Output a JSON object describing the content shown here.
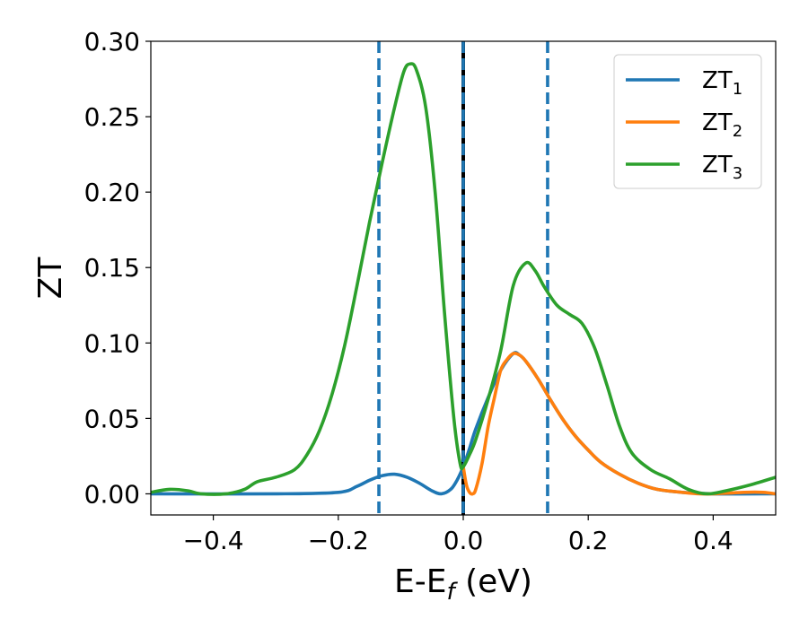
{
  "chart_data": {
    "type": "line",
    "title": "",
    "xlabel_main": "E-E",
    "xlabel_sub": "f",
    "xlabel_unit": " (eV)",
    "ylabel": "ZT",
    "xlim": [
      -0.5,
      0.5
    ],
    "ylim": [
      -0.014,
      0.3
    ],
    "xticks": [
      -0.4,
      -0.2,
      0.0,
      0.2,
      0.4
    ],
    "xtick_labels": [
      "−0.4",
      "−0.2",
      "0.0",
      "0.2",
      "0.4"
    ],
    "yticks": [
      0.0,
      0.05,
      0.1,
      0.15,
      0.2,
      0.25,
      0.3
    ],
    "ytick_labels": [
      "0.00",
      "0.05",
      "0.10",
      "0.15",
      "0.20",
      "0.25",
      "0.30"
    ],
    "grid": false,
    "legend_position": "top-right",
    "vlines": [
      {
        "x": -0.135,
        "style": "dashed",
        "color": "#1f77b4"
      },
      {
        "x": 0.135,
        "style": "dashed",
        "color": "#1f77b4"
      },
      {
        "x": 0.0,
        "style": "solid",
        "color": "#000000"
      },
      {
        "x": 0.0,
        "style": "dashed",
        "color": "#1f77b4"
      }
    ],
    "series": [
      {
        "name_main": "ZT",
        "name_sub": "1",
        "color": "#1f77b4",
        "points": [
          [
            -0.5,
            0.0
          ],
          [
            -0.3,
            0.0
          ],
          [
            -0.2,
            0.001
          ],
          [
            -0.17,
            0.005
          ],
          [
            -0.15,
            0.009
          ],
          [
            -0.13,
            0.012
          ],
          [
            -0.11,
            0.013
          ],
          [
            -0.09,
            0.011
          ],
          [
            -0.07,
            0.007
          ],
          [
            -0.05,
            0.002
          ],
          [
            -0.035,
            0.0
          ],
          [
            -0.02,
            0.003
          ],
          [
            -0.01,
            0.009
          ],
          [
            0.0,
            0.018
          ],
          [
            0.01,
            0.03
          ],
          [
            0.02,
            0.043
          ],
          [
            0.04,
            0.064
          ],
          [
            0.06,
            0.082
          ],
          [
            0.08,
            0.093
          ],
          [
            0.09,
            0.092
          ],
          [
            0.1,
            0.088
          ],
          [
            0.12,
            0.076
          ],
          [
            0.14,
            0.062
          ],
          [
            0.16,
            0.049
          ],
          [
            0.18,
            0.038
          ],
          [
            0.2,
            0.029
          ],
          [
            0.22,
            0.021
          ],
          [
            0.25,
            0.013
          ],
          [
            0.28,
            0.007
          ],
          [
            0.31,
            0.003
          ],
          [
            0.35,
            0.001
          ],
          [
            0.4,
            0.0
          ],
          [
            0.5,
            0.0
          ]
        ]
      },
      {
        "name_main": "ZT",
        "name_sub": "2",
        "color": "#ff7f0e",
        "points": [
          [
            0.0,
            0.018
          ],
          [
            0.005,
            0.006
          ],
          [
            0.01,
            0.001
          ],
          [
            0.015,
            0.0
          ],
          [
            0.02,
            0.003
          ],
          [
            0.03,
            0.02
          ],
          [
            0.04,
            0.045
          ],
          [
            0.05,
            0.064
          ],
          [
            0.06,
            0.082
          ],
          [
            0.07,
            0.089
          ],
          [
            0.08,
            0.093
          ],
          [
            0.09,
            0.092
          ],
          [
            0.1,
            0.088
          ],
          [
            0.12,
            0.076
          ],
          [
            0.14,
            0.062
          ],
          [
            0.16,
            0.049
          ],
          [
            0.18,
            0.038
          ],
          [
            0.2,
            0.029
          ],
          [
            0.22,
            0.021
          ],
          [
            0.25,
            0.013
          ],
          [
            0.28,
            0.007
          ],
          [
            0.31,
            0.003
          ],
          [
            0.35,
            0.001
          ],
          [
            0.38,
            0.0
          ],
          [
            0.4,
            0.0
          ],
          [
            0.45,
            0.001
          ],
          [
            0.48,
            0.001
          ],
          [
            0.5,
            0.0
          ]
        ]
      },
      {
        "name_main": "ZT",
        "name_sub": "3",
        "color": "#2ca02c",
        "points": [
          [
            -0.5,
            0.001
          ],
          [
            -0.47,
            0.003
          ],
          [
            -0.44,
            0.002
          ],
          [
            -0.42,
            0.0
          ],
          [
            -0.38,
            0.0
          ],
          [
            -0.35,
            0.003
          ],
          [
            -0.33,
            0.008
          ],
          [
            -0.3,
            0.011
          ],
          [
            -0.27,
            0.016
          ],
          [
            -0.25,
            0.026
          ],
          [
            -0.23,
            0.042
          ],
          [
            -0.21,
            0.066
          ],
          [
            -0.19,
            0.098
          ],
          [
            -0.17,
            0.138
          ],
          [
            -0.15,
            0.18
          ],
          [
            -0.13,
            0.219
          ],
          [
            -0.11,
            0.256
          ],
          [
            -0.095,
            0.28
          ],
          [
            -0.085,
            0.285
          ],
          [
            -0.075,
            0.281
          ],
          [
            -0.06,
            0.256
          ],
          [
            -0.045,
            0.2
          ],
          [
            -0.03,
            0.12
          ],
          [
            -0.015,
            0.05
          ],
          [
            -0.005,
            0.02
          ],
          [
            0.0,
            0.018
          ],
          [
            0.01,
            0.026
          ],
          [
            0.02,
            0.036
          ],
          [
            0.04,
            0.063
          ],
          [
            0.06,
            0.095
          ],
          [
            0.08,
            0.138
          ],
          [
            0.1,
            0.153
          ],
          [
            0.115,
            0.148
          ],
          [
            0.13,
            0.137
          ],
          [
            0.15,
            0.125
          ],
          [
            0.17,
            0.119
          ],
          [
            0.19,
            0.113
          ],
          [
            0.21,
            0.097
          ],
          [
            0.23,
            0.072
          ],
          [
            0.25,
            0.045
          ],
          [
            0.27,
            0.027
          ],
          [
            0.3,
            0.016
          ],
          [
            0.33,
            0.01
          ],
          [
            0.36,
            0.003
          ],
          [
            0.39,
            0.0
          ],
          [
            0.42,
            0.002
          ],
          [
            0.46,
            0.006
          ],
          [
            0.5,
            0.011
          ]
        ]
      }
    ]
  }
}
